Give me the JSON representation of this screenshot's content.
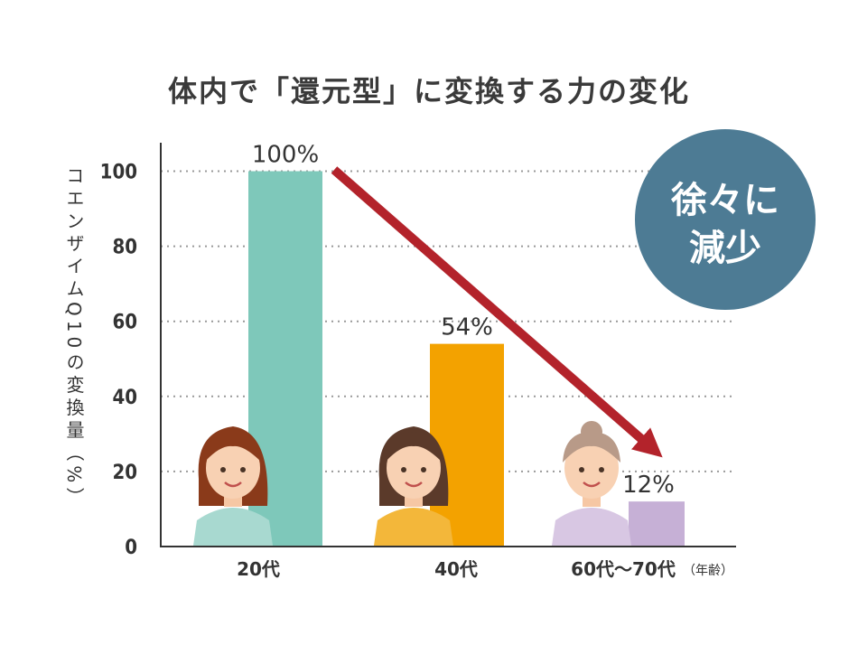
{
  "chart_data": {
    "type": "bar",
    "title": "体内で「還元型」に変換する力の変化",
    "ylabel": "コエンザイムQ10の変換量（%）",
    "xunit": "（年齢）",
    "categories": [
      "20代",
      "40代",
      "60代〜70代"
    ],
    "values": [
      100,
      54,
      12
    ],
    "data_labels": [
      "100%",
      "54%",
      "12%"
    ],
    "colors": [
      "#7ec8ba",
      "#f3a200",
      "#c6b0d6"
    ],
    "ylim": [
      0,
      100
    ],
    "yticks": [
      0,
      20,
      40,
      60,
      80,
      100
    ],
    "grid": true,
    "annotation": {
      "line1": "徐々に",
      "line2": "減少",
      "color": "#4d7b94"
    },
    "arrow_color": "#b3232b"
  }
}
